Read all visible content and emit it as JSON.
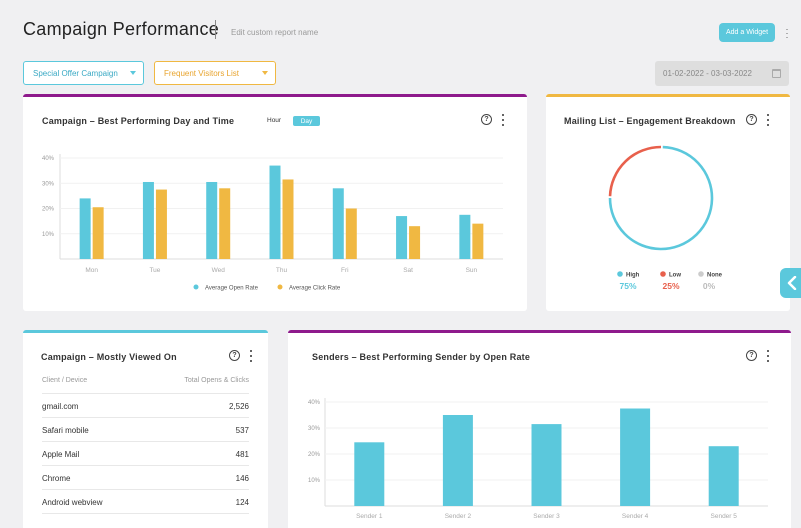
{
  "header": {
    "title": "Campaign Performance",
    "report_name_placeholder": "Edit custom report name",
    "add_widget_label": "Add a Widget"
  },
  "filters": {
    "campaign": "Special Offer Campaign",
    "list": "Frequent Visitors List",
    "date_range": "01-02-2022 - 03-03-2022"
  },
  "best_day": {
    "title": "Campaign – Best Performing Day and Time",
    "toggle_hour": "Hour",
    "toggle_day": "Day"
  },
  "engagement": {
    "title": "Mailing List – Engagement Breakdown",
    "legend": [
      {
        "label": "High",
        "value": "75%",
        "color": "#5bc8dc"
      },
      {
        "label": "Low",
        "value": "25%",
        "color": "#e8604c"
      },
      {
        "label": "None",
        "value": "0%",
        "color": "#cccccc"
      }
    ]
  },
  "mostly_viewed": {
    "title": "Campaign – Mostly Viewed On",
    "col1": "Client / Device",
    "col2": "Total Opens & Clicks",
    "rows": [
      {
        "name": "gmail.com",
        "value": "2,526"
      },
      {
        "name": "Safari mobile",
        "value": "537"
      },
      {
        "name": "Apple Mail",
        "value": "481"
      },
      {
        "name": "Chrome",
        "value": "146"
      },
      {
        "name": "Android webview",
        "value": "124"
      }
    ]
  },
  "senders": {
    "title": "Senders – Best Performing Sender by Open Rate"
  },
  "colors": {
    "teal": "#5bc8dc",
    "orange": "#f0b842",
    "purple": "#8e1a8c",
    "red": "#e8604c"
  },
  "chart_data": [
    {
      "type": "bar",
      "categories": [
        "Mon",
        "Tue",
        "Wed",
        "Thu",
        "Fri",
        "Sat",
        "Sun"
      ],
      "series": [
        {
          "name": "Average Open Rate",
          "values": [
            24,
            30.5,
            30.5,
            37,
            28,
            17,
            17.5
          ]
        },
        {
          "name": "Average Click Rate",
          "values": [
            20.5,
            27.5,
            28,
            31.5,
            20,
            13,
            14
          ]
        }
      ],
      "yticks": [
        "10%",
        "20%",
        "30%",
        "40%"
      ],
      "ylim": [
        0,
        40
      ],
      "legend": "bottom"
    },
    {
      "type": "pie",
      "categories": [
        "High",
        "Low",
        "None"
      ],
      "values": [
        75,
        25,
        0
      ]
    },
    {
      "type": "bar",
      "categories": [
        "Sender 1",
        "Sender 2",
        "Sender 3",
        "Sender 4",
        "Sender 5"
      ],
      "values": [
        24.5,
        35,
        31.5,
        37.5,
        23
      ],
      "yticks": [
        "10%",
        "20%",
        "30%",
        "40%"
      ],
      "ylim": [
        0,
        40
      ]
    }
  ]
}
